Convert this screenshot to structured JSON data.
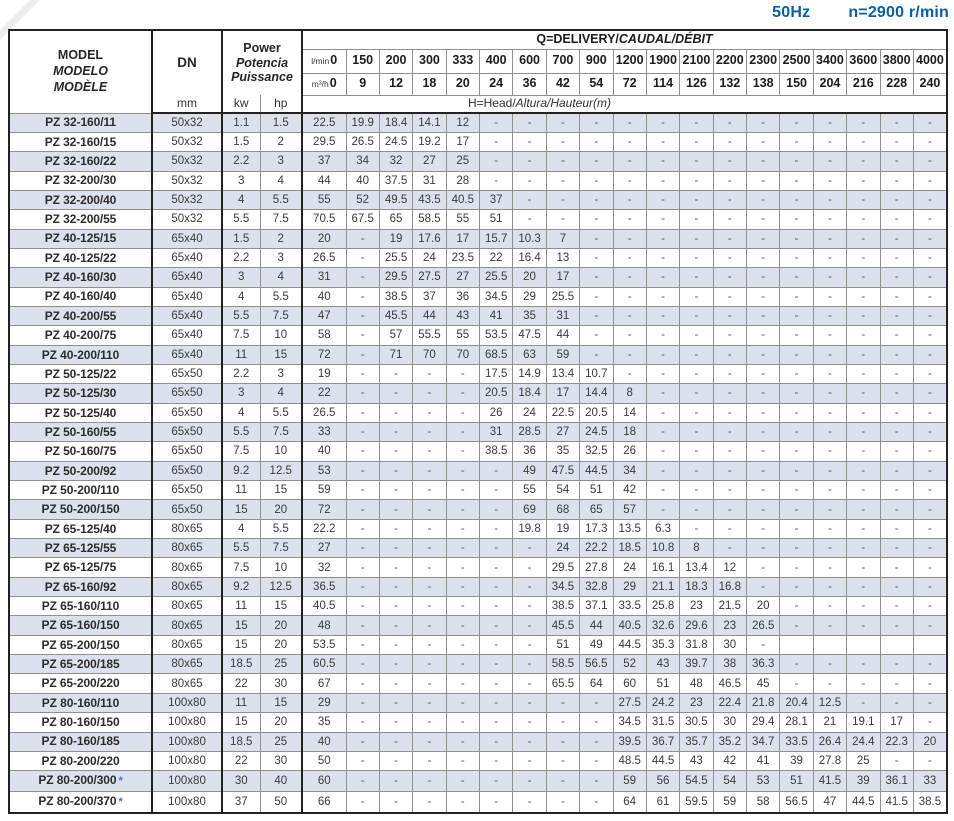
{
  "page": {
    "frequency": "50Hz",
    "speed": "n=2900 r/min"
  },
  "colors": {
    "accent_blue": "#0b5fa8",
    "star_blue": "#4472c4",
    "row_stripe": "#dbe2ee"
  },
  "table": {
    "model_header": {
      "line1": "MODEL",
      "line2": "MODELO",
      "line3": "MODÈLE"
    },
    "dn_header": "DN",
    "dn_unit": "mm",
    "power_header": {
      "line1": "Power",
      "line2": "Potencia",
      "line3": "Puissance"
    },
    "kw_label": "kw",
    "hp_label": "hp",
    "q_header": {
      "plain": "Q=DELIVERY/",
      "italic": "CAUDAL/DÉBIT"
    },
    "h_header": {
      "plain": "H=Head/",
      "italic": "Altura/Hauteur(m)"
    },
    "lmin_label": "l/min",
    "m3h_label": "m³/h",
    "flow_lmin": [
      "0",
      "150",
      "200",
      "300",
      "333",
      "400",
      "600",
      "700",
      "900",
      "1200",
      "1900",
      "2100",
      "2200",
      "2300",
      "2500",
      "3400",
      "3600",
      "3800",
      "4000"
    ],
    "flow_m3h": [
      "0",
      "9",
      "12",
      "18",
      "20",
      "24",
      "36",
      "42",
      "54",
      "72",
      "114",
      "126",
      "132",
      "138",
      "150",
      "204",
      "216",
      "228",
      "240"
    ],
    "star_symbol": "*",
    "rows": [
      {
        "model": "PZ 32-160/11",
        "star": false,
        "dn": "50x32",
        "kw": "1.1",
        "hp": "1.5",
        "head": [
          "22.5",
          "19.9",
          "18.4",
          "14.1",
          "12",
          "-",
          "-",
          "-",
          "-",
          "-",
          "-",
          "-",
          "-",
          "-",
          "-",
          "-",
          "-",
          "-",
          "-"
        ]
      },
      {
        "model": "PZ 32-160/15",
        "star": false,
        "dn": "50x32",
        "kw": "1.5",
        "hp": "2",
        "head": [
          "29.5",
          "26.5",
          "24.5",
          "19.2",
          "17",
          "-",
          "-",
          "-",
          "-",
          "-",
          "-",
          "-",
          "-",
          "-",
          "-",
          "-",
          "-",
          "-",
          "-"
        ]
      },
      {
        "model": "PZ 32-160/22",
        "star": false,
        "dn": "50x32",
        "kw": "2.2",
        "hp": "3",
        "head": [
          "37",
          "34",
          "32",
          "27",
          "25",
          "-",
          "-",
          "-",
          "-",
          "-",
          "-",
          "-",
          "-",
          "-",
          "-",
          "-",
          "-",
          "-",
          "-"
        ]
      },
      {
        "model": "PZ 32-200/30",
        "star": false,
        "dn": "50x32",
        "kw": "3",
        "hp": "4",
        "head": [
          "44",
          "40",
          "37.5",
          "31",
          "28",
          "-",
          "-",
          "-",
          "-",
          "-",
          "-",
          "-",
          "-",
          "-",
          "-",
          "-",
          "-",
          "-",
          "-"
        ]
      },
      {
        "model": "PZ 32-200/40",
        "star": false,
        "dn": "50x32",
        "kw": "4",
        "hp": "5.5",
        "head": [
          "55",
          "52",
          "49.5",
          "43.5",
          "40.5",
          "37",
          "-",
          "-",
          "-",
          "-",
          "-",
          "-",
          "-",
          "-",
          "-",
          "-",
          "-",
          "-",
          "-"
        ]
      },
      {
        "model": "PZ 32-200/55",
        "star": false,
        "dn": "50x32",
        "kw": "5.5",
        "hp": "7.5",
        "head": [
          "70.5",
          "67.5",
          "65",
          "58.5",
          "55",
          "51",
          "-",
          "-",
          "-",
          "-",
          "-",
          "-",
          "-",
          "-",
          "-",
          "-",
          "-",
          "-",
          "-"
        ]
      },
      {
        "model": "PZ 40-125/15",
        "star": false,
        "dn": "65x40",
        "kw": "1.5",
        "hp": "2",
        "head": [
          "20",
          "-",
          "19",
          "17.6",
          "17",
          "15.7",
          "10.3",
          "7",
          "-",
          "-",
          "-",
          "-",
          "-",
          "-",
          "-",
          "-",
          "-",
          "-",
          "-"
        ]
      },
      {
        "model": "PZ 40-125/22",
        "star": false,
        "dn": "65x40",
        "kw": "2.2",
        "hp": "3",
        "head": [
          "26.5",
          "-",
          "25.5",
          "24",
          "23.5",
          "22",
          "16.4",
          "13",
          "-",
          "-",
          "-",
          "-",
          "-",
          "-",
          "-",
          "-",
          "-",
          "-",
          "-"
        ]
      },
      {
        "model": "PZ 40-160/30",
        "star": false,
        "dn": "65x40",
        "kw": "3",
        "hp": "4",
        "head": [
          "31",
          "-",
          "29.5",
          "27.5",
          "27",
          "25.5",
          "20",
          "17",
          "-",
          "-",
          "-",
          "-",
          "-",
          "-",
          "-",
          "-",
          "-",
          "-",
          "-"
        ]
      },
      {
        "model": "PZ 40-160/40",
        "star": false,
        "dn": "65x40",
        "kw": "4",
        "hp": "5.5",
        "head": [
          "40",
          "-",
          "38.5",
          "37",
          "36",
          "34.5",
          "29",
          "25.5",
          "-",
          "-",
          "-",
          "-",
          "-",
          "-",
          "-",
          "-",
          "-",
          "-",
          "-"
        ]
      },
      {
        "model": "PZ 40-200/55",
        "star": false,
        "dn": "65x40",
        "kw": "5.5",
        "hp": "7.5",
        "head": [
          "47",
          "-",
          "45.5",
          "44",
          "43",
          "41",
          "35",
          "31",
          "-",
          "-",
          "-",
          "-",
          "-",
          "-",
          "-",
          "-",
          "-",
          "-",
          "-"
        ]
      },
      {
        "model": "PZ 40-200/75",
        "star": false,
        "dn": "65x40",
        "kw": "7.5",
        "hp": "10",
        "head": [
          "58",
          "-",
          "57",
          "55.5",
          "55",
          "53.5",
          "47.5",
          "44",
          "-",
          "-",
          "-",
          "-",
          "-",
          "-",
          "-",
          "-",
          "-",
          "-",
          "-"
        ]
      },
      {
        "model": "PZ 40-200/110",
        "star": false,
        "dn": "65x40",
        "kw": "11",
        "hp": "15",
        "head": [
          "72",
          "-",
          "71",
          "70",
          "70",
          "68.5",
          "63",
          "59",
          "-",
          "-",
          "-",
          "-",
          "-",
          "-",
          "-",
          "-",
          "-",
          "-",
          "-"
        ]
      },
      {
        "model": "PZ 50-125/22",
        "star": false,
        "dn": "65x50",
        "kw": "2.2",
        "hp": "3",
        "head": [
          "19",
          "-",
          "-",
          "-",
          "-",
          "17.5",
          "14.9",
          "13.4",
          "10.7",
          "-",
          "-",
          "-",
          "-",
          "-",
          "-",
          "-",
          "-",
          "-",
          "-"
        ]
      },
      {
        "model": "PZ 50-125/30",
        "star": false,
        "dn": "65x50",
        "kw": "3",
        "hp": "4",
        "head": [
          "22",
          "-",
          "-",
          "-",
          "-",
          "20.5",
          "18.4",
          "17",
          "14.4",
          "8",
          "-",
          "-",
          "-",
          "-",
          "-",
          "-",
          "-",
          "-",
          "-"
        ]
      },
      {
        "model": "PZ 50-125/40",
        "star": false,
        "dn": "65x50",
        "kw": "4",
        "hp": "5.5",
        "head": [
          "26.5",
          "-",
          "-",
          "-",
          "-",
          "26",
          "24",
          "22.5",
          "20.5",
          "14",
          "-",
          "-",
          "-",
          "-",
          "-",
          "-",
          "-",
          "-",
          "-"
        ]
      },
      {
        "model": "PZ 50-160/55",
        "star": false,
        "dn": "65x50",
        "kw": "5.5",
        "hp": "7.5",
        "head": [
          "33",
          "-",
          "-",
          "-",
          "-",
          "31",
          "28.5",
          "27",
          "24.5",
          "18",
          "-",
          "-",
          "-",
          "-",
          "-",
          "-",
          "-",
          "-",
          "-"
        ]
      },
      {
        "model": "PZ 50-160/75",
        "star": false,
        "dn": "65x50",
        "kw": "7.5",
        "hp": "10",
        "head": [
          "40",
          "-",
          "-",
          "-",
          "-",
          "38.5",
          "36",
          "35",
          "32.5",
          "26",
          "-",
          "-",
          "-",
          "-",
          "-",
          "-",
          "-",
          "-",
          "-"
        ]
      },
      {
        "model": "PZ 50-200/92",
        "star": false,
        "dn": "65x50",
        "kw": "9.2",
        "hp": "12.5",
        "head": [
          "53",
          "-",
          "-",
          "-",
          "-",
          "-",
          "49",
          "47.5",
          "44.5",
          "34",
          "-",
          "-",
          "-",
          "-",
          "-",
          "-",
          "-",
          "-",
          "-"
        ]
      },
      {
        "model": "PZ 50-200/110",
        "star": false,
        "dn": "65x50",
        "kw": "11",
        "hp": "15",
        "head": [
          "59",
          "-",
          "-",
          "-",
          "-",
          "-",
          "55",
          "54",
          "51",
          "42",
          "-",
          "-",
          "-",
          "-",
          "-",
          "-",
          "-",
          "-",
          "-"
        ]
      },
      {
        "model": "PZ 50-200/150",
        "star": false,
        "dn": "65x50",
        "kw": "15",
        "hp": "20",
        "head": [
          "72",
          "-",
          "-",
          "-",
          "-",
          "-",
          "69",
          "68",
          "65",
          "57",
          "-",
          "-",
          "-",
          "-",
          "-",
          "-",
          "-",
          "-",
          "-"
        ]
      },
      {
        "model": "PZ 65-125/40",
        "star": false,
        "dn": "80x65",
        "kw": "4",
        "hp": "5.5",
        "head": [
          "22.2",
          "-",
          "-",
          "-",
          "-",
          "-",
          "19.8",
          "19",
          "17.3",
          "13.5",
          "6.3",
          "-",
          "-",
          "-",
          "-",
          "-",
          "-",
          "-",
          "-"
        ]
      },
      {
        "model": "PZ 65-125/55",
        "star": false,
        "dn": "80x65",
        "kw": "5.5",
        "hp": "7.5",
        "head": [
          "27",
          "-",
          "-",
          "-",
          "-",
          "-",
          "-",
          "24",
          "22.2",
          "18.5",
          "10.8",
          "8",
          "-",
          "-",
          "-",
          "-",
          "-",
          "-",
          "-"
        ]
      },
      {
        "model": "PZ 65-125/75",
        "star": false,
        "dn": "80x65",
        "kw": "7.5",
        "hp": "10",
        "head": [
          "32",
          "-",
          "-",
          "-",
          "-",
          "-",
          "-",
          "29.5",
          "27.8",
          "24",
          "16.1",
          "13.4",
          "12",
          "-",
          "-",
          "-",
          "-",
          "-",
          "-"
        ]
      },
      {
        "model": "PZ 65-160/92",
        "star": false,
        "dn": "80x65",
        "kw": "9.2",
        "hp": "12.5",
        "head": [
          "36.5",
          "-",
          "-",
          "-",
          "-",
          "-",
          "-",
          "34.5",
          "32.8",
          "29",
          "21.1",
          "18.3",
          "16.8",
          "-",
          "-",
          "-",
          "-",
          "-",
          "-"
        ]
      },
      {
        "model": "PZ 65-160/110",
        "star": false,
        "dn": "80x65",
        "kw": "11",
        "hp": "15",
        "head": [
          "40.5",
          "-",
          "-",
          "-",
          "-",
          "-",
          "-",
          "38.5",
          "37.1",
          "33.5",
          "25.8",
          "23",
          "21.5",
          "20",
          "-",
          "-",
          "-",
          "-",
          "-"
        ]
      },
      {
        "model": "PZ 65-160/150",
        "star": false,
        "dn": "80x65",
        "kw": "15",
        "hp": "20",
        "head": [
          "48",
          "-",
          "-",
          "-",
          "-",
          "-",
          "-",
          "45.5",
          "44",
          "40.5",
          "32.6",
          "29.6",
          "23",
          "26.5",
          "-",
          "-",
          "-",
          "-",
          "-"
        ]
      },
      {
        "model": "PZ 65-200/150",
        "star": false,
        "dn": "80x65",
        "kw": "15",
        "hp": "20",
        "head": [
          "53.5",
          "-",
          "-",
          "-",
          "-",
          "-",
          "-",
          "51",
          "49",
          "44.5",
          "35.3",
          "31.8",
          "30",
          "-",
          "",
          "",
          "",
          "",
          ""
        ]
      },
      {
        "model": "PZ 65-200/185",
        "star": false,
        "dn": "80x65",
        "kw": "18.5",
        "hp": "25",
        "head": [
          "60.5",
          "-",
          "-",
          "-",
          "-",
          "-",
          "-",
          "58.5",
          "56.5",
          "52",
          "43",
          "39.7",
          "38",
          "36.3",
          "-",
          "-",
          "-",
          "-",
          "-"
        ]
      },
      {
        "model": "PZ 65-200/220",
        "star": false,
        "dn": "80x65",
        "kw": "22",
        "hp": "30",
        "head": [
          "67",
          "-",
          "-",
          "-",
          "-",
          "-",
          "-",
          "65.5",
          "64",
          "60",
          "51",
          "48",
          "46.5",
          "45",
          "-",
          "-",
          "-",
          "-",
          "-"
        ]
      },
      {
        "model": "PZ 80-160/110",
        "star": false,
        "dn": "100x80",
        "kw": "11",
        "hp": "15",
        "head": [
          "29",
          "-",
          "-",
          "-",
          "-",
          "-",
          "-",
          "-",
          "-",
          "27.5",
          "24.2",
          "23",
          "22.4",
          "21.8",
          "20.4",
          "12.5",
          "-",
          "-",
          "-"
        ]
      },
      {
        "model": "PZ 80-160/150",
        "star": false,
        "dn": "100x80",
        "kw": "15",
        "hp": "20",
        "head": [
          "35",
          "-",
          "-",
          "-",
          "-",
          "-",
          "-",
          "-",
          "-",
          "34.5",
          "31.5",
          "30.5",
          "30",
          "29.4",
          "28.1",
          "21",
          "19.1",
          "17",
          "-"
        ]
      },
      {
        "model": "PZ 80-160/185",
        "star": false,
        "dn": "100x80",
        "kw": "18.5",
        "hp": "25",
        "head": [
          "40",
          "-",
          "-",
          "-",
          "-",
          "-",
          "-",
          "-",
          "-",
          "39.5",
          "36.7",
          "35.7",
          "35.2",
          "34.7",
          "33.5",
          "26.4",
          "24.4",
          "22.3",
          "20"
        ]
      },
      {
        "model": "PZ 80-200/220",
        "star": false,
        "dn": "100x80",
        "kw": "22",
        "hp": "30",
        "head": [
          "50",
          "-",
          "-",
          "-",
          "-",
          "-",
          "-",
          "-",
          "-",
          "48.5",
          "44.5",
          "43",
          "42",
          "41",
          "39",
          "27.8",
          "25",
          "-",
          "-"
        ]
      },
      {
        "model": "PZ 80-200/300",
        "star": true,
        "dn": "100x80",
        "kw": "30",
        "hp": "40",
        "head": [
          "60",
          "-",
          "-",
          "-",
          "-",
          "-",
          "-",
          "-",
          "-",
          "59",
          "56",
          "54.5",
          "54",
          "53",
          "51",
          "41.5",
          "39",
          "36.1",
          "33"
        ]
      },
      {
        "model": "PZ 80-200/370",
        "star": true,
        "dn": "100x80",
        "kw": "37",
        "hp": "50",
        "head": [
          "66",
          "-",
          "-",
          "-",
          "-",
          "-",
          "-",
          "-",
          "-",
          "64",
          "61",
          "59.5",
          "59",
          "58",
          "56.5",
          "47",
          "44.5",
          "41.5",
          "38.5"
        ]
      }
    ]
  }
}
